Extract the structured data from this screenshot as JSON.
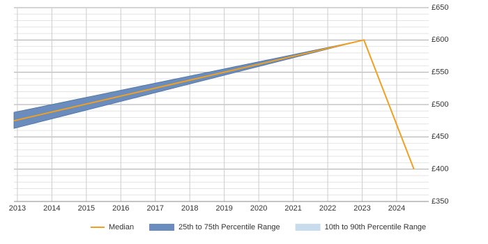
{
  "chart_data": {
    "type": "band-line",
    "x": [
      2012.9,
      2023.05,
      2024.5
    ],
    "series": [
      {
        "name": "Median",
        "color": "#f0a020",
        "values": [
          475,
          600,
          400
        ]
      },
      {
        "name": "25th to 75th Percentile Range",
        "color": "#6a8dbd",
        "low": [
          463,
          600,
          null
        ],
        "high": [
          488,
          600,
          null
        ]
      },
      {
        "name": "10th to 90th Percentile Range",
        "color": "#c9dcee",
        "low": [
          null,
          null,
          null
        ],
        "high": [
          null,
          null,
          null
        ]
      }
    ],
    "xlim": [
      2012.9,
      2024.93
    ],
    "xticks": [
      2013,
      2014,
      2015,
      2016,
      2017,
      2018,
      2019,
      2020,
      2021,
      2022,
      2023,
      2024
    ],
    "ylim": [
      350,
      650
    ],
    "yticks": [
      {
        "value": 350,
        "label": "£350"
      },
      {
        "value": 400,
        "label": "£400"
      },
      {
        "value": 450,
        "label": "£450"
      },
      {
        "value": 500,
        "label": "£500"
      },
      {
        "value": 550,
        "label": "£550"
      },
      {
        "value": 600,
        "label": "£600"
      },
      {
        "value": 650,
        "label": "£650"
      }
    ],
    "grid": true,
    "legend": "bottom"
  }
}
